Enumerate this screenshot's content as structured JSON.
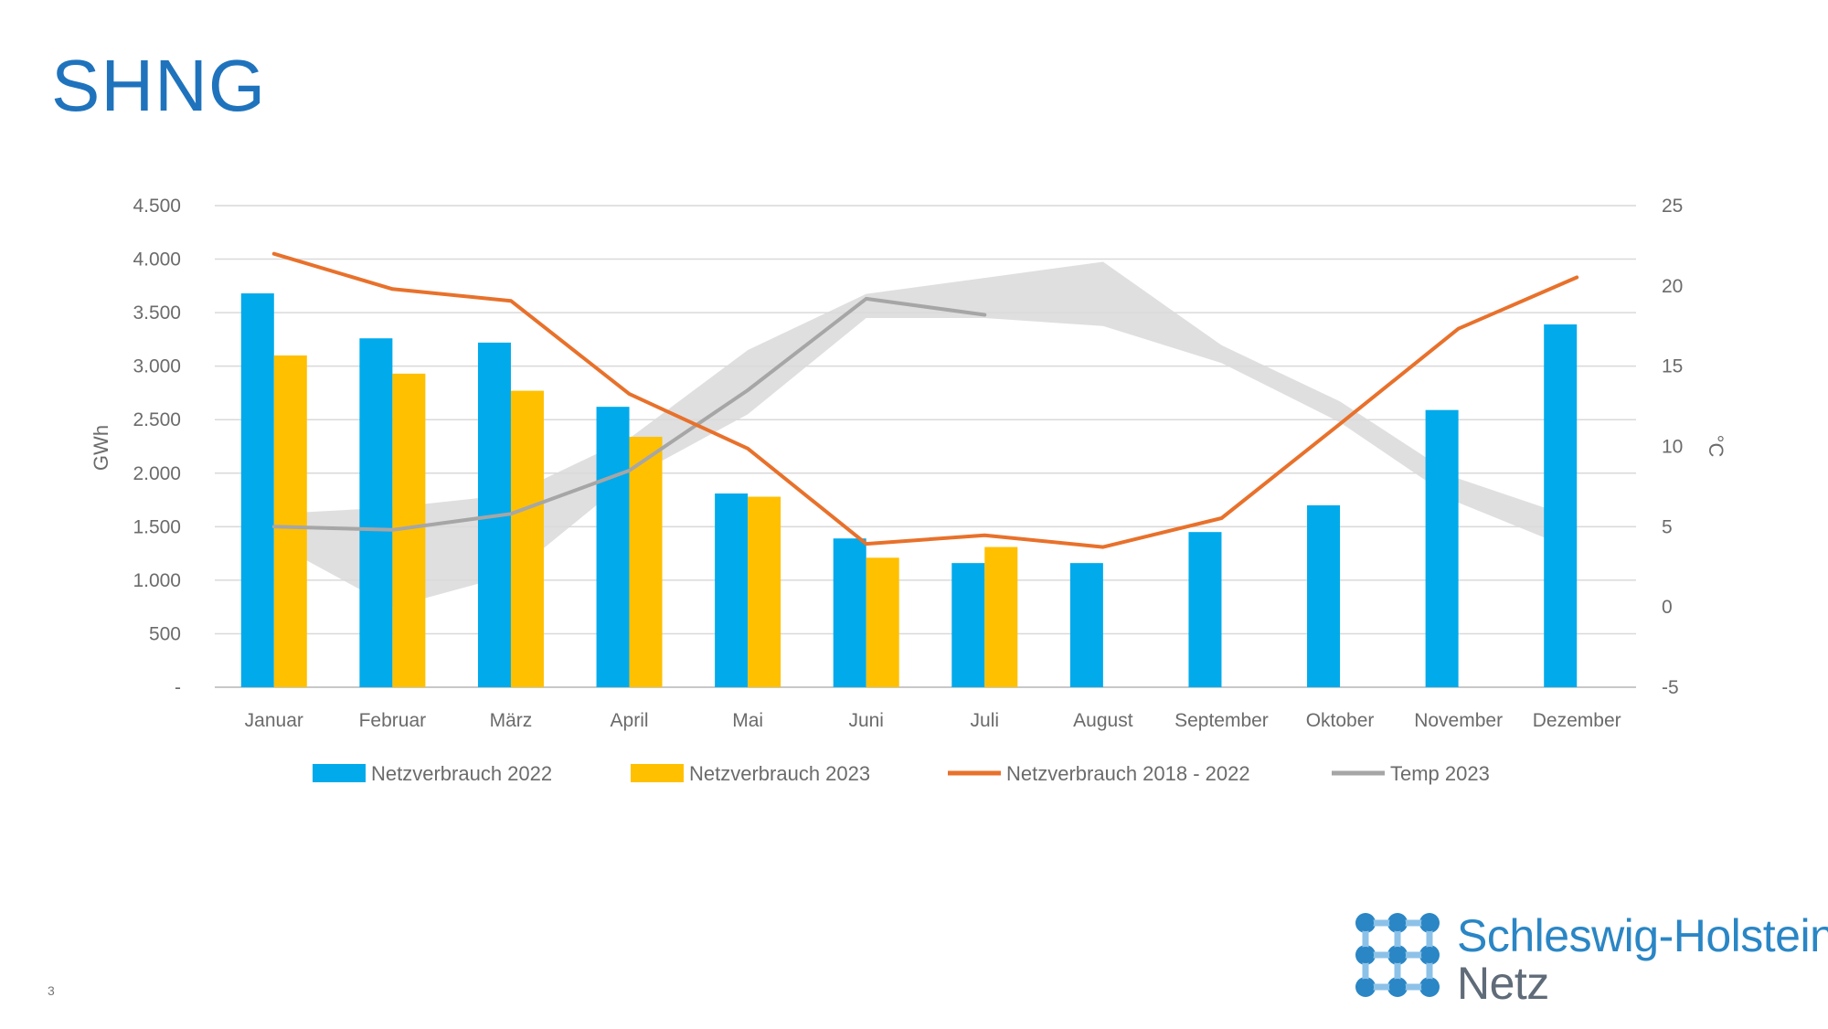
{
  "slide": {
    "title": "SHNG",
    "page_number": "3"
  },
  "logo": {
    "line1": "Schleswig-Holstein",
    "line2": "Netz"
  },
  "colors": {
    "bar2022": "#00aaeb",
    "bar2023": "#ffc000",
    "avg": "#e8712b",
    "temp": "#a6a6a6",
    "band": "#d9d9d9",
    "title": "#1f73bd",
    "grid": "#d9d9d9"
  },
  "chart_data": {
    "type": "bar",
    "title": "",
    "ylabel": "GWh",
    "y2label": "°C",
    "ylim": [
      0,
      4500
    ],
    "y2lim": [
      -5,
      25
    ],
    "grid": true,
    "legend_position": "bottom",
    "categories": [
      "Januar",
      "Februar",
      "März",
      "April",
      "Mai",
      "Juni",
      "Juli",
      "August",
      "September",
      "Oktober",
      "November",
      "Dezember"
    ],
    "y_ticks": [
      0,
      500,
      1000,
      1500,
      2000,
      2500,
      3000,
      3500,
      4000,
      4500
    ],
    "y_tick_labels": [
      "-",
      "500",
      "1.000",
      "1.500",
      "2.000",
      "2.500",
      "3.000",
      "3.500",
      "4.000",
      "4.500"
    ],
    "y2_ticks": [
      -5,
      0,
      5,
      10,
      15,
      20,
      25
    ],
    "y2_tick_labels": [
      "-5",
      "0",
      "5",
      "10",
      "15",
      "20",
      "25"
    ],
    "series": [
      {
        "name": "Netzverbrauch 2022",
        "type": "bar",
        "axis": "left",
        "color": "#00aaeb",
        "values": [
          3680,
          3260,
          3220,
          2620,
          1810,
          1390,
          1160,
          1160,
          1450,
          1700,
          2590,
          3390
        ]
      },
      {
        "name": "Netzverbrauch 2023",
        "type": "bar",
        "axis": "left",
        "color": "#ffc000",
        "values": [
          3100,
          2930,
          2770,
          2340,
          1780,
          1210,
          1310,
          null,
          null,
          null,
          null,
          null
        ]
      },
      {
        "name": "Netzverbrauch 2018 - 2022",
        "type": "line",
        "axis": "left",
        "color": "#e8712b",
        "values": [
          4050,
          3720,
          3610,
          2740,
          2230,
          1340,
          1420,
          1310,
          1580,
          2460,
          3350,
          3830
        ]
      },
      {
        "name": "Temp 2023",
        "type": "line",
        "axis": "right",
        "color": "#a6a6a6",
        "values": [
          5,
          4.8,
          5.8,
          8.5,
          13.5,
          19.2,
          18.2,
          null,
          null,
          null,
          null,
          null
        ]
      }
    ],
    "temperature_band": {
      "axis": "right",
      "color": "#d9d9d9",
      "upper": [
        5.8,
        6.2,
        7,
        10.5,
        16,
        19.5,
        20.5,
        21.5,
        16.3,
        12.8,
        8,
        5.5
      ],
      "lower": [
        4,
        0,
        2,
        8,
        12,
        18,
        18,
        17.5,
        15.2,
        11.5,
        6.5,
        3.5
      ]
    }
  }
}
